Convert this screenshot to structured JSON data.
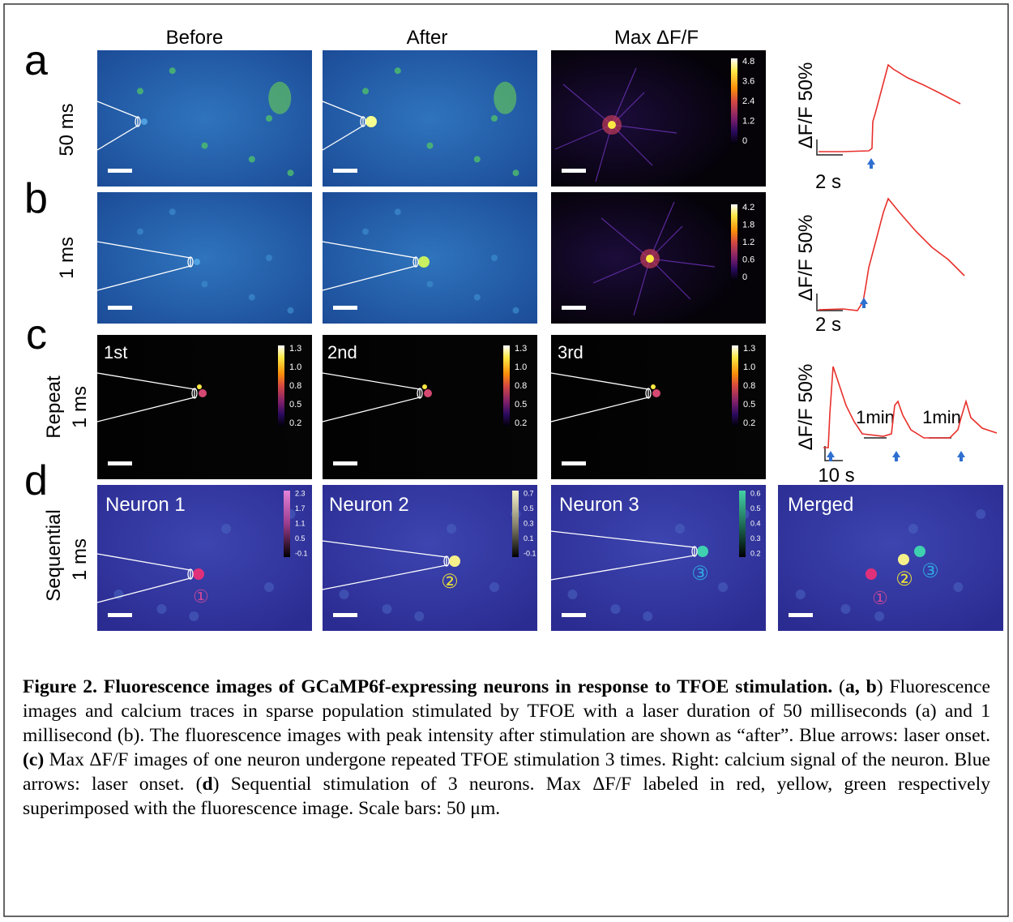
{
  "figure": {
    "column_headers": [
      "Before",
      "After",
      "Max ΔF/F"
    ],
    "panels": [
      {
        "letter": "a",
        "row_label": [
          "50 ms"
        ],
        "colorbars": [
          [
            "4.8",
            "3.6",
            "2.4",
            "1.2",
            "0"
          ]
        ],
        "trace": {
          "y_label": "ΔF/F 50%",
          "x_label": "2 s"
        }
      },
      {
        "letter": "b",
        "row_label": [
          "1 ms"
        ],
        "colorbars": [
          [
            "4.2",
            "1.8",
            "1.2",
            "0.6",
            "0"
          ]
        ],
        "trace": {
          "y_label": "ΔF/F 50%",
          "x_label": "2 s"
        }
      },
      {
        "letter": "c",
        "row_label": [
          "Repeat",
          "1 ms"
        ],
        "image_labels": [
          "1st",
          "2nd",
          "3rd"
        ],
        "colorbars": [
          [
            "1.3",
            "1.0",
            "0.8",
            "0.5",
            "0.2"
          ],
          [
            "1.3",
            "1.0",
            "0.8",
            "0.5",
            "0.2"
          ],
          [
            "1.3",
            "1.0",
            "0.8",
            "0.5",
            "0.2"
          ]
        ],
        "trace": {
          "y_label": "ΔF/F 50%",
          "x_label": "10 s",
          "intervals": [
            "1min",
            "1min"
          ]
        }
      },
      {
        "letter": "d",
        "row_label": [
          "Sequential",
          "1 ms"
        ],
        "image_labels": [
          "Neuron 1",
          "Neuron 2",
          "Neuron 3",
          "Merged"
        ],
        "colorbars": [
          [
            "2.3",
            "1.7",
            "1.1",
            "0.5",
            "-0.1"
          ],
          [
            "0.7",
            "0.5",
            "0.3",
            "0.1",
            "-0.1"
          ],
          [
            "0.6",
            "0.5",
            "0.4",
            "0.3",
            "0.2"
          ]
        ],
        "neuron_markers": [
          "①",
          "②",
          "③"
        ]
      }
    ],
    "caption": [
      {
        "text": "Figure 2. Fluorescence images of GCaMP6f-expressing neurons in response to TFOE stimulation.",
        "bold": true
      },
      {
        "text": " (",
        "bold": false
      },
      {
        "text": "a, b",
        "bold": true
      },
      {
        "text": ") Fluorescence images and calcium traces in sparse population stimulated by TFOE with a laser duration of 50 milliseconds (a) and 1 millisecond (b). The fluorescence images with peak intensity after stimulation are shown as “after”. Blue arrows: laser onset. ",
        "bold": false
      },
      {
        "text": "(c)",
        "bold": true
      },
      {
        "text": " Max ΔF/F images of one neuron undergone repeated TFOE stimulation 3 times. Right: calcium signal of the neuron. Blue arrows: laser onset. (",
        "bold": false
      },
      {
        "text": "d",
        "bold": true
      },
      {
        "text": ") Sequential stimulation of 3 neurons. Max ΔF/F labeled in red, yellow, green respectively superimposed with the fluorescence image. Scale bars: 50 μm.",
        "bold": false
      }
    ]
  }
}
